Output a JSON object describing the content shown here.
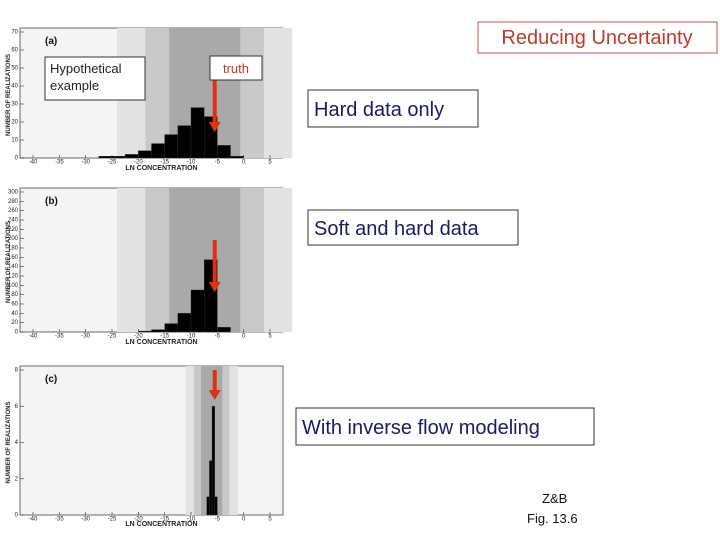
{
  "title": "Reducing Uncertainty",
  "example_label": "Hypothetical example",
  "callouts": [
    "Hard data only",
    "Soft and hard data",
    "With inverse flow modeling"
  ],
  "source": [
    "Z&B",
    "Fig. 13.6"
  ],
  "chart_data": [
    {
      "type": "histogram",
      "panel": "(a)",
      "annotation": "truth",
      "truth": -5.5,
      "xlabel": "LN CONCENTRATION",
      "ylabel": "NUMBER OF REALIZATIONS",
      "color": "#000000",
      "bins": [
        -27.5,
        -25,
        -22.5,
        -20,
        -17.5,
        -15,
        -12.5,
        -10,
        -7.5,
        -5,
        -2.5,
        0
      ],
      "values": [
        1,
        1,
        2,
        4,
        8,
        13,
        18,
        28,
        23,
        7,
        1
      ],
      "xlim": [
        -40,
        5
      ],
      "xticks": [
        -40,
        -35,
        -30,
        -25,
        -20,
        -15,
        -10,
        -5,
        0,
        5
      ],
      "ylim": [
        0,
        70
      ],
      "yticks": [
        0,
        10,
        20,
        30,
        40,
        50,
        60,
        70
      ]
    },
    {
      "type": "histogram",
      "panel": "(b)",
      "truth": -5.5,
      "xlabel": "LN CONCENTRATION",
      "ylabel": "NUMBER OF REALIZATIONS",
      "color": "#000000",
      "bins": [
        -20,
        -17.5,
        -15,
        -12.5,
        -10,
        -7.5,
        -5,
        -2.5
      ],
      "values": [
        2,
        5,
        18,
        40,
        90,
        155,
        10
      ],
      "xlim": [
        -40,
        5
      ],
      "xticks": [
        -40,
        -35,
        -30,
        -25,
        -20,
        -15,
        -10,
        -5,
        0,
        5
      ],
      "ylim": [
        0,
        300
      ],
      "yticks": [
        0,
        20,
        40,
        60,
        80,
        100,
        120,
        140,
        160,
        180,
        200,
        220,
        240,
        260,
        280,
        300
      ]
    },
    {
      "type": "histogram",
      "panel": "(c)",
      "truth": -5.5,
      "xlabel": "LN CONCENTRATION",
      "ylabel": "NUMBER OF REALIZATIONS",
      "color": "#000000",
      "bins": [
        -7,
        -6.5,
        -6,
        -5.5,
        -5
      ],
      "values": [
        1,
        3,
        6,
        1
      ],
      "xlim": [
        -40,
        5
      ],
      "xticks": [
        -40,
        -35,
        -30,
        -25,
        -20,
        -15,
        -10,
        -5,
        0,
        5
      ],
      "ylim": [
        0,
        8
      ],
      "yticks": [
        0,
        2,
        4,
        6,
        8
      ]
    }
  ]
}
